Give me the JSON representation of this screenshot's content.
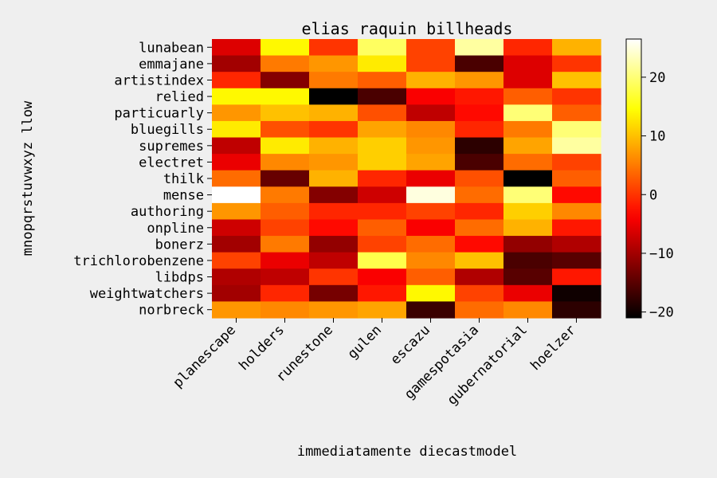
{
  "chart_data": {
    "type": "heatmap",
    "title": "elias raquin billheads",
    "xlabel": "immediatamente diecastmodel",
    "ylabel": "mnopqrstuvwxyz llow",
    "colormap": "hot",
    "vmin": -21,
    "vmax": 26.5,
    "colorbar_ticks": [
      -20,
      -10,
      0,
      10,
      20
    ],
    "colorbar_tick_labels": [
      "−20",
      "−10",
      "0",
      "10",
      "20"
    ],
    "x_categories": [
      "planescape",
      "holders",
      "runestone",
      "gulen",
      "escazu",
      "gamespotasia",
      "gubernatorial",
      "hoelzer"
    ],
    "y_categories": [
      "lunabean",
      "emmajane",
      "artistindex",
      "relied",
      "particuarly",
      "bluegills",
      "supremes",
      "electret",
      "thilk",
      "mense",
      "authoring",
      "onpline",
      "bonerz",
      "trichlorobenzene",
      "libdps",
      "weightwatchers",
      "norbreck"
    ],
    "values": [
      [
        -6,
        14,
        0,
        19,
        1,
        22,
        -1,
        9
      ],
      [
        -10,
        5,
        7,
        13,
        1,
        -16,
        -6,
        0
      ],
      [
        -1,
        -12,
        5,
        3,
        9,
        7,
        -6,
        10
      ],
      [
        14,
        14,
        -21,
        -16,
        -4,
        -2,
        3,
        0
      ],
      [
        7,
        10,
        9,
        2,
        -8,
        -3,
        20,
        3
      ],
      [
        13,
        2,
        0,
        8,
        6,
        -1,
        5,
        20
      ],
      [
        -8,
        13,
        9,
        11,
        7,
        -18,
        8,
        22
      ],
      [
        -5,
        6,
        7,
        11,
        8,
        -16,
        4,
        1
      ],
      [
        4,
        -14,
        9,
        -1,
        -5,
        2,
        -21,
        3
      ],
      [
        26.5,
        5,
        -12,
        -7,
        25,
        4,
        20,
        -3
      ],
      [
        7,
        3,
        -1,
        -1,
        1,
        -1,
        11,
        6
      ],
      [
        -7,
        1,
        -3,
        3,
        -4,
        4,
        9,
        -2
      ],
      [
        -10,
        5,
        -11,
        1,
        4,
        -3,
        -11,
        -9
      ],
      [
        1,
        -5,
        -8,
        18,
        6,
        10,
        -16,
        -15
      ],
      [
        -9,
        -8,
        0,
        -4,
        3,
        -9,
        -15,
        -2
      ],
      [
        -10,
        -1,
        -13,
        -2,
        14,
        1,
        -5,
        -20
      ],
      [
        7,
        6,
        7,
        8,
        -17,
        4,
        6,
        -18
      ]
    ]
  }
}
